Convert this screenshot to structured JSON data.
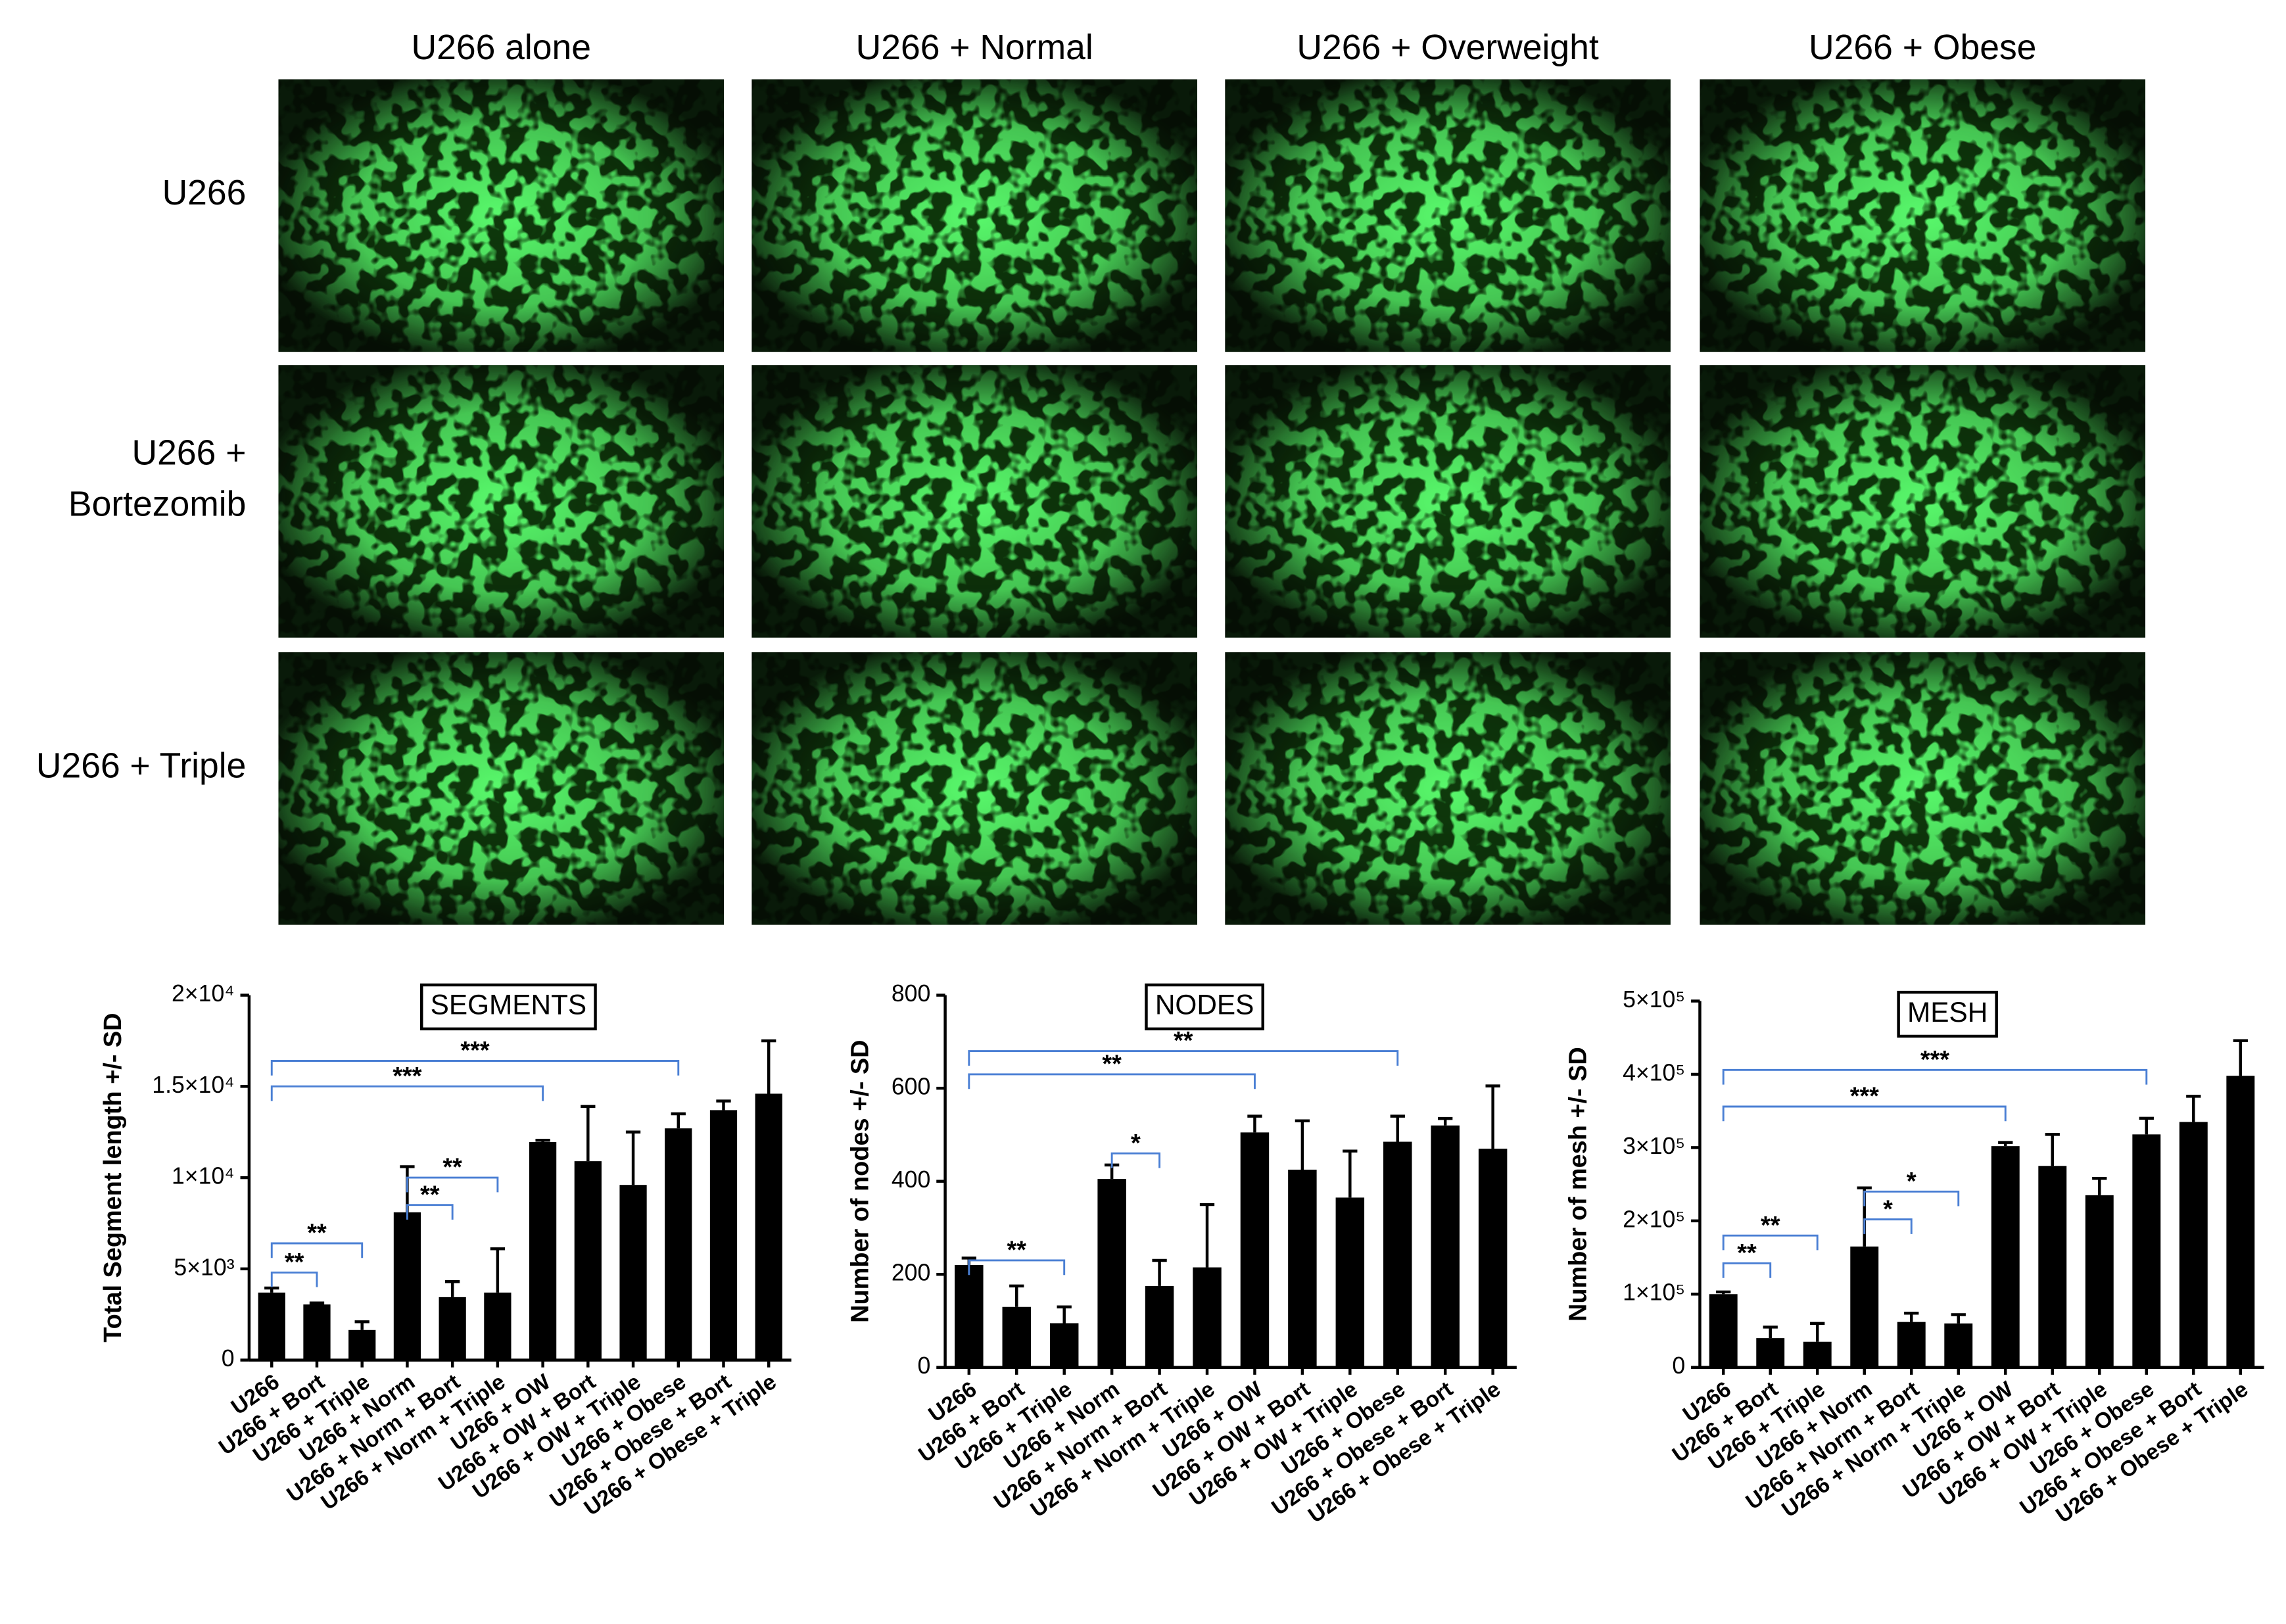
{
  "image_grid": {
    "columns": [
      "U266 alone",
      "U266 + Normal",
      "U266 + Overweight",
      "U266 + Obese"
    ],
    "rows": [
      [
        "U266"
      ],
      [
        "U266 +",
        "Bortezomib"
      ],
      [
        "U266 + Triple"
      ]
    ]
  },
  "chart_data": [
    {
      "type": "bar",
      "title": "SEGMENTS",
      "ylabel": "Total Segment length +/- SD",
      "color": "#000000",
      "annotation_color": "#4a7fd4",
      "categories": [
        "U266",
        "U266 + Bort",
        "U266 + Triple",
        "U266 + Norm",
        "U266 + Norm + Bort",
        "U266 + Norm + Triple",
        "U266 + OW",
        "U266 + OW + Bort",
        "U266 + OW + Triple",
        "U266 + Obese",
        "U266 + Obese + Bort",
        "U266 + Obese + Triple"
      ],
      "values": [
        3700,
        3050,
        1650,
        8100,
        3450,
        3700,
        11950,
        10900,
        9600,
        12700,
        13700,
        14600
      ],
      "errors": [
        250,
        80,
        450,
        2500,
        850,
        2400,
        100,
        3000,
        2900,
        800,
        500,
        2900
      ],
      "ylim": [
        0,
        20000
      ],
      "yticks": [
        0,
        {
          "value": 5000,
          "label": "5×10³"
        },
        {
          "value": 10000,
          "label": "1×10⁴"
        },
        {
          "value": 15000,
          "label": "1.5×10⁴"
        },
        {
          "value": 20000,
          "label": "2×10⁴"
        }
      ],
      "annotations": [
        {
          "text": "**",
          "from": 0,
          "to": 1,
          "y": 4800
        },
        {
          "text": "**",
          "from": 0,
          "to": 2,
          "y": 6400
        },
        {
          "text": "**",
          "from": 3,
          "to": 4,
          "y": 8500
        },
        {
          "text": "**",
          "from": 3,
          "to": 5,
          "y": 10000
        },
        {
          "text": "***",
          "from": 0,
          "to": 6,
          "y": 15000
        },
        {
          "text": "***",
          "from": 0,
          "to": 9,
          "y": 16400
        }
      ]
    },
    {
      "type": "bar",
      "title": "NODES",
      "ylabel": "Number of nodes +/- SD",
      "color": "#000000",
      "annotation_color": "#4a7fd4",
      "categories": [
        "U266",
        "U266 + Bort",
        "U266 + Triple",
        "U266 + Norm",
        "U266 + Norm + Bort",
        "U266 + Norm + Triple",
        "U266 + OW",
        "U266 + OW + Bort",
        "U266 + OW + Triple",
        "U266 + Obese",
        "U266 + Obese + Bort",
        "U266 + Obese + Triple"
      ],
      "values": [
        220,
        130,
        95,
        405,
        175,
        215,
        505,
        425,
        365,
        485,
        520,
        470
      ],
      "errors": [
        15,
        45,
        35,
        30,
        55,
        135,
        35,
        105,
        100,
        55,
        15,
        135
      ],
      "ylim": [
        0,
        800
      ],
      "yticks": [
        0,
        200,
        400,
        600,
        800
      ],
      "annotations": [
        {
          "text": "**",
          "from": 0,
          "to": 2,
          "y": 230
        },
        {
          "text": "*",
          "from": 3,
          "to": 4,
          "y": 460
        },
        {
          "text": "**",
          "from": 0,
          "to": 6,
          "y": 630
        },
        {
          "text": "**",
          "from": 0,
          "to": 9,
          "y": 680
        }
      ]
    },
    {
      "type": "bar",
      "title": "MESH",
      "ylabel": "Number of mesh +/- SD",
      "color": "#000000",
      "annotation_color": "#4a7fd4",
      "categories": [
        "U266",
        "U266 + Bort",
        "U266 + Triple",
        "U266 + Norm",
        "U266 + Norm + Bort",
        "U266 + Norm + Triple",
        "U266 + OW",
        "U266 + OW + Bort",
        "U266 + OW + Triple",
        "U266 + Obese",
        "U266 + Obese + Bort",
        "U266 + Obese + Triple"
      ],
      "values": [
        100000,
        40000,
        35000,
        165000,
        62000,
        60000,
        302000,
        275000,
        235000,
        318000,
        335000,
        398000
      ],
      "errors": [
        3000,
        15000,
        25000,
        80000,
        12000,
        12000,
        5000,
        43000,
        23000,
        22000,
        35000,
        48000
      ],
      "ylim": [
        0,
        500000
      ],
      "yticks": [
        0,
        {
          "value": 100000,
          "label": "1×10⁵"
        },
        {
          "value": 200000,
          "label": "2×10⁵"
        },
        {
          "value": 300000,
          "label": "3×10⁵"
        },
        {
          "value": 400000,
          "label": "4×10⁵"
        },
        {
          "value": 500000,
          "label": "5×10⁵"
        }
      ],
      "annotations": [
        {
          "text": "**",
          "from": 0,
          "to": 1,
          "y": 142000
        },
        {
          "text": "**",
          "from": 0,
          "to": 2,
          "y": 180000
        },
        {
          "text": "*",
          "from": 3,
          "to": 4,
          "y": 202000
        },
        {
          "text": "*",
          "from": 3,
          "to": 5,
          "y": 240000
        },
        {
          "text": "***",
          "from": 0,
          "to": 6,
          "y": 356000
        },
        {
          "text": "***",
          "from": 0,
          "to": 9,
          "y": 406000
        }
      ]
    }
  ]
}
